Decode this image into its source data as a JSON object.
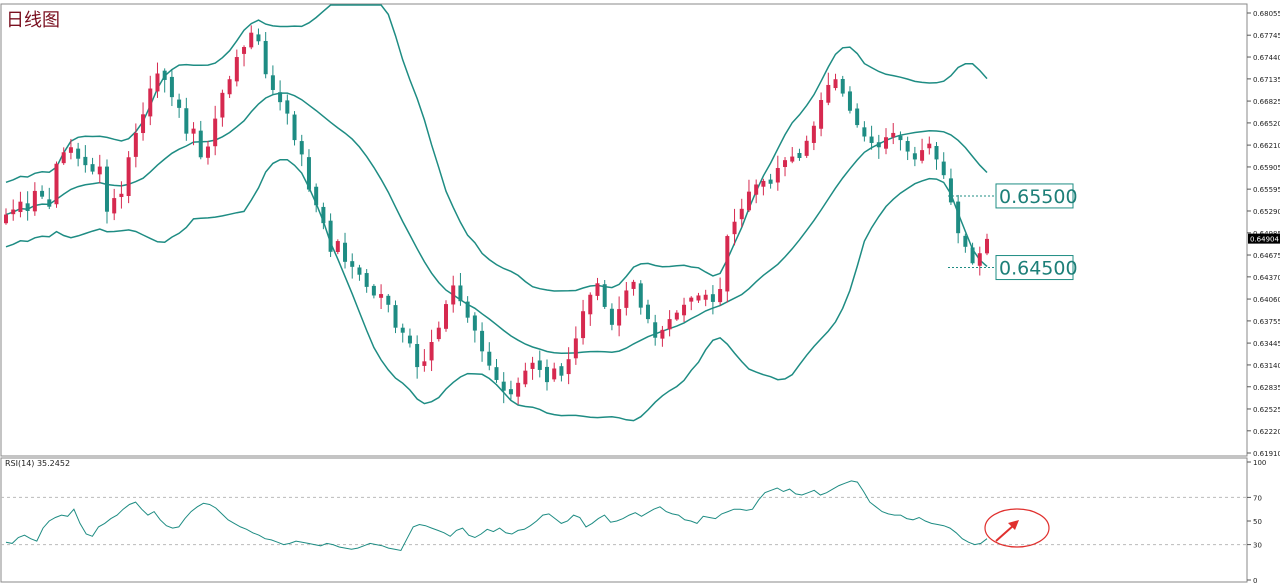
{
  "title": "日线图",
  "colors": {
    "bull": "#d6294f",
    "bear": "#1e8c83",
    "band": "#1e8c83",
    "rsi": "#1e8c83",
    "annotation": "#e0302e",
    "grid": "#c8c8c8",
    "current_price_bg": "#000000"
  },
  "chart_data": [
    {
      "type": "candlestick",
      "title": "日线图",
      "ylim": [
        0.6191,
        0.68055
      ],
      "y_ticks": [
        "0.68055",
        "0.67745",
        "0.67440",
        "0.67135",
        "0.66825",
        "0.66520",
        "0.66210",
        "0.65905",
        "0.65595",
        "0.65290",
        "0.64985",
        "0.64675",
        "0.64370",
        "0.64060",
        "0.63755",
        "0.63445",
        "0.63140",
        "0.62835",
        "0.62525",
        "0.62220",
        "0.61910"
      ],
      "current_price": "0.64904",
      "indicators": [
        "Bollinger Bands"
      ],
      "annotations": [
        {
          "label": "0.65500",
          "value": 0.655
        },
        {
          "label": "0.64500",
          "value": 0.645
        }
      ],
      "close_path": [
        0.6524,
        0.6531,
        0.6542,
        0.6529,
        0.6557,
        0.6549,
        0.6535,
        0.6595,
        0.6611,
        0.6618,
        0.6602,
        0.6593,
        0.6584,
        0.6591,
        0.6528,
        0.6547,
        0.6553,
        0.6604,
        0.6638,
        0.6664,
        0.67,
        0.6721,
        0.6712,
        0.6688,
        0.6673,
        0.6637,
        0.6644,
        0.6604,
        0.6619,
        0.6658,
        0.6694,
        0.6713,
        0.6744,
        0.6758,
        0.6778,
        0.6766,
        0.672,
        0.6698,
        0.6681,
        0.6665,
        0.6628,
        0.6608,
        0.6559,
        0.6537,
        0.6512,
        0.6472,
        0.6487,
        0.6458,
        0.6451,
        0.644,
        0.6423,
        0.6411,
        0.6413,
        0.6398,
        0.6366,
        0.6359,
        0.6344,
        0.6311,
        0.6319,
        0.6346,
        0.6366,
        0.6399,
        0.6425,
        0.6403,
        0.638,
        0.6362,
        0.6333,
        0.6313,
        0.6293,
        0.6278,
        0.6273,
        0.6289,
        0.6306,
        0.6317,
        0.6307,
        0.629,
        0.6309,
        0.6299,
        0.6322,
        0.6351,
        0.6389,
        0.6412,
        0.6428,
        0.6395,
        0.637,
        0.6392,
        0.6418,
        0.643,
        0.6394,
        0.6378,
        0.6352,
        0.6363,
        0.6378,
        0.6387,
        0.6398,
        0.6408,
        0.6411,
        0.6412,
        0.6402,
        0.642,
        0.6494,
        0.6514,
        0.6532,
        0.6556,
        0.6566,
        0.6571,
        0.6567,
        0.6589,
        0.66,
        0.6605,
        0.6603,
        0.6627,
        0.6648,
        0.6684,
        0.6705,
        0.6713,
        0.6693,
        0.6669,
        0.6649,
        0.6633,
        0.6624,
        0.6618,
        0.6632,
        0.6638,
        0.6628,
        0.6612,
        0.6601,
        0.6614,
        0.6623,
        0.6601,
        0.6579,
        0.6541,
        0.6498,
        0.6479,
        0.6456,
        0.647,
        0.649
      ]
    },
    {
      "type": "line",
      "title": "RSI(14) 35.2452",
      "ylim": [
        0,
        100
      ],
      "y_ticks": [
        "100",
        "70",
        "50",
        "30",
        "0"
      ],
      "reference_lines": [
        70,
        30
      ],
      "values": [
        32,
        31,
        36,
        38,
        35,
        33,
        44,
        50,
        53,
        55,
        54,
        60,
        48,
        39,
        37,
        45,
        48,
        52,
        55,
        60,
        64,
        66,
        60,
        55,
        58,
        51,
        46,
        44,
        45,
        52,
        58,
        62,
        65,
        64,
        61,
        56,
        51,
        48,
        45,
        43,
        40,
        38,
        35,
        34,
        32,
        30,
        31,
        33,
        32,
        31,
        30,
        29,
        31,
        30,
        28,
        27,
        26,
        27,
        29,
        31,
        30,
        29,
        27,
        26,
        25,
        35,
        45,
        47,
        46,
        44,
        42,
        40,
        37,
        42,
        44,
        38,
        36,
        39,
        43,
        41,
        44,
        40,
        39,
        42,
        43,
        46,
        50,
        55,
        56,
        52,
        48,
        50,
        55,
        53,
        45,
        48,
        52,
        55,
        49,
        50,
        52,
        55,
        57,
        54,
        57,
        60,
        62,
        58,
        56,
        55,
        51,
        50,
        48,
        54,
        53,
        52,
        56,
        58,
        60,
        60,
        59,
        60,
        68,
        74,
        76,
        78,
        75,
        77,
        73,
        72,
        74,
        76,
        72,
        74,
        77,
        80,
        82,
        84,
        83,
        75,
        66,
        62,
        58,
        56,
        55,
        55,
        52,
        51,
        53,
        50,
        48,
        47,
        46,
        44,
        40,
        35,
        32,
        30,
        31,
        35
      ]
    }
  ]
}
